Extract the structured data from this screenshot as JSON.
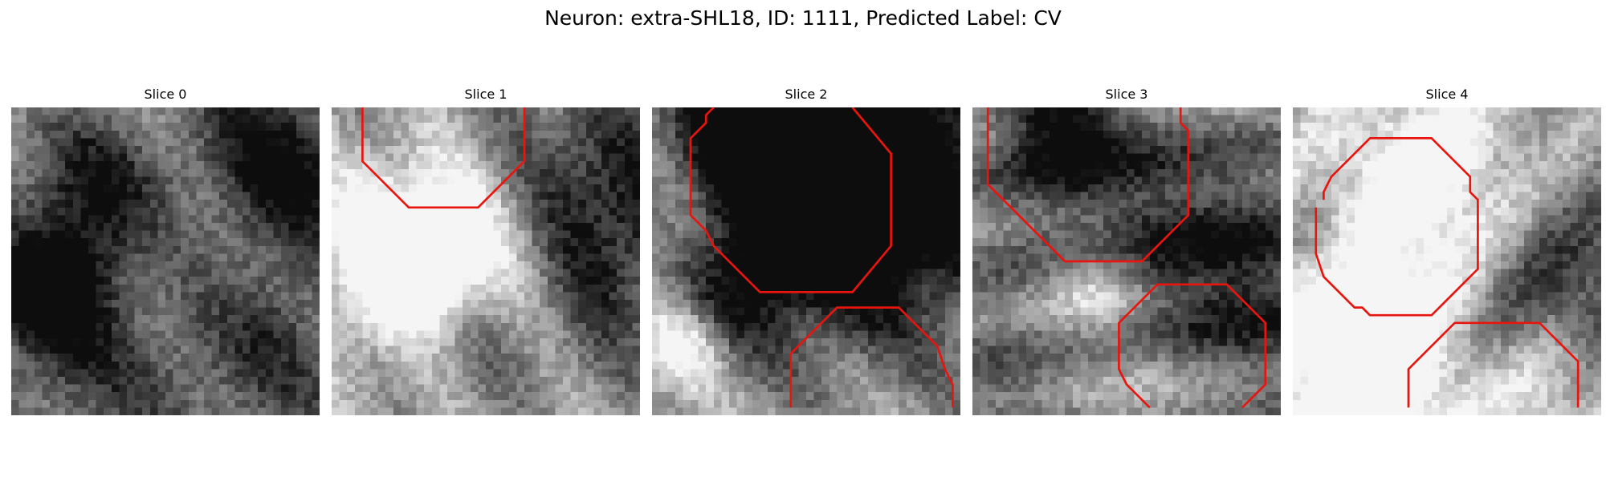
{
  "figure": {
    "title": "Neuron: extra-SHL18, ID: 1111, Predicted Label: CV"
  },
  "panels": [
    {
      "title": "Slice 0",
      "seed": 11,
      "contours": []
    },
    {
      "title": "Slice 1",
      "seed": 23,
      "contours": [
        [
          [
            4,
            0
          ],
          [
            4,
            7
          ],
          [
            10,
            13
          ],
          [
            19,
            13
          ],
          [
            25,
            7
          ],
          [
            25,
            0
          ]
        ]
      ]
    },
    {
      "title": "Slice 2",
      "seed": 37,
      "contours": [
        [
          [
            8,
            0
          ],
          [
            7,
            1
          ],
          [
            7,
            2
          ],
          [
            5,
            4
          ],
          [
            5,
            14
          ],
          [
            7,
            16
          ],
          [
            8,
            18
          ],
          [
            14,
            24
          ],
          [
            26,
            24
          ],
          [
            31,
            18
          ],
          [
            31,
            6
          ],
          [
            26,
            0
          ]
        ],
        [
          [
            18,
            39
          ],
          [
            18,
            32
          ],
          [
            24,
            26
          ],
          [
            32,
            26
          ],
          [
            37,
            31
          ],
          [
            38,
            34
          ],
          [
            39,
            36
          ],
          [
            39,
            39
          ]
        ]
      ]
    },
    {
      "title": "Slice 3",
      "seed": 41,
      "contours": [
        [
          [
            2,
            0
          ],
          [
            2,
            10
          ],
          [
            12,
            20
          ],
          [
            22,
            20
          ],
          [
            28,
            14
          ],
          [
            28,
            3
          ],
          [
            27,
            2
          ],
          [
            27,
            0
          ]
        ],
        [
          [
            23,
            39
          ],
          [
            20,
            36
          ],
          [
            19,
            34
          ],
          [
            19,
            28
          ],
          [
            24,
            23
          ],
          [
            33,
            23
          ],
          [
            38,
            28
          ],
          [
            38,
            36
          ],
          [
            35,
            39
          ]
        ]
      ]
    },
    {
      "title": "Slice 4",
      "seed": 57,
      "contours": [
        [
          [
            3,
            13
          ],
          [
            3,
            19
          ],
          [
            4,
            22
          ],
          [
            8,
            26
          ],
          [
            9,
            26
          ],
          [
            10,
            27
          ],
          [
            18,
            27
          ],
          [
            20,
            25
          ],
          [
            24,
            21
          ],
          [
            24,
            12
          ],
          [
            23,
            11
          ],
          [
            23,
            9
          ],
          [
            18,
            4
          ],
          [
            10,
            4
          ],
          [
            5,
            9
          ],
          [
            4,
            11
          ],
          [
            4,
            12
          ]
        ],
        [
          [
            15,
            39
          ],
          [
            15,
            34
          ],
          [
            21,
            28
          ],
          [
            32,
            28
          ],
          [
            37,
            33
          ],
          [
            37,
            39
          ]
        ]
      ]
    }
  ],
  "colors": {
    "contour": "#e8150f",
    "background": "#ffffff"
  }
}
